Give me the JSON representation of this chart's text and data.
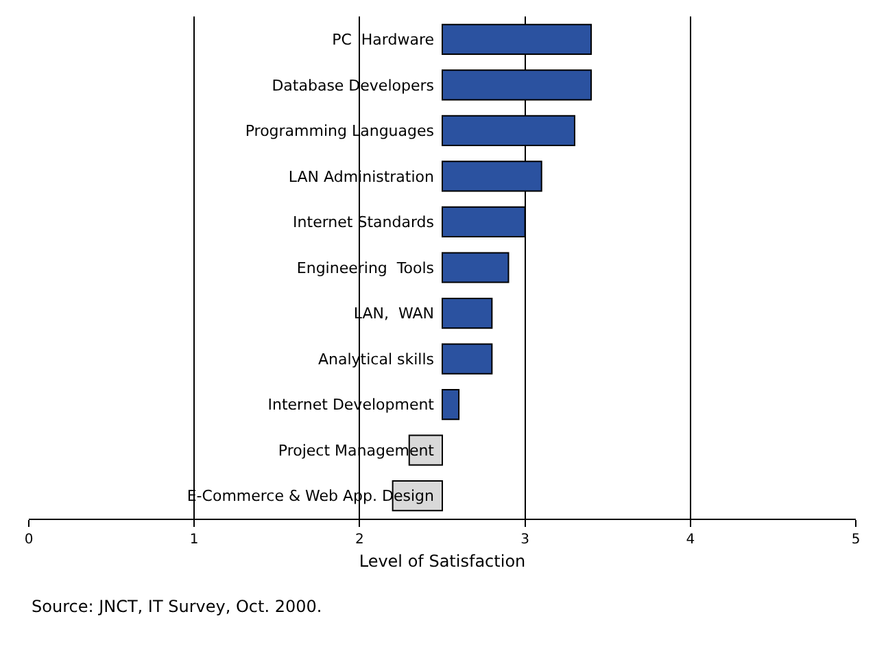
{
  "chart_data": {
    "type": "bar",
    "orientation": "horizontal",
    "xlabel": "Level of Satisfaction",
    "categories": [
      "PC  Hardware",
      "Database Developers",
      "Programming Languages",
      "LAN Administration",
      "Internet Standards",
      "Engineering  Tools",
      "LAN,  WAN",
      "Analytical skills",
      "Internet Development",
      "Project Management",
      "E-Commerce & Web App. Design"
    ],
    "values": [
      0.9,
      0.9,
      0.8,
      0.6,
      0.5,
      0.4,
      0.3,
      0.3,
      0.1,
      -0.2,
      -0.3
    ],
    "base": [
      2.5,
      2.5,
      2.5,
      2.5,
      2.5,
      2.5,
      2.5,
      2.5,
      2.5,
      2.5,
      2.5
    ],
    "colors": [
      "#2b52a0",
      "#2b52a0",
      "#2b52a0",
      "#2b52a0",
      "#2b52a0",
      "#2b52a0",
      "#2b52a0",
      "#2b52a0",
      "#2b52a0",
      "#d9d9d9",
      "#d9d9d9"
    ],
    "xlim": [
      0,
      5
    ],
    "xticks": [
      0,
      1,
      2,
      3,
      4,
      5
    ],
    "grid": "x",
    "legend": false,
    "annotations": [
      "Source: JNCT, IT Survey, Oct. 2000."
    ]
  }
}
